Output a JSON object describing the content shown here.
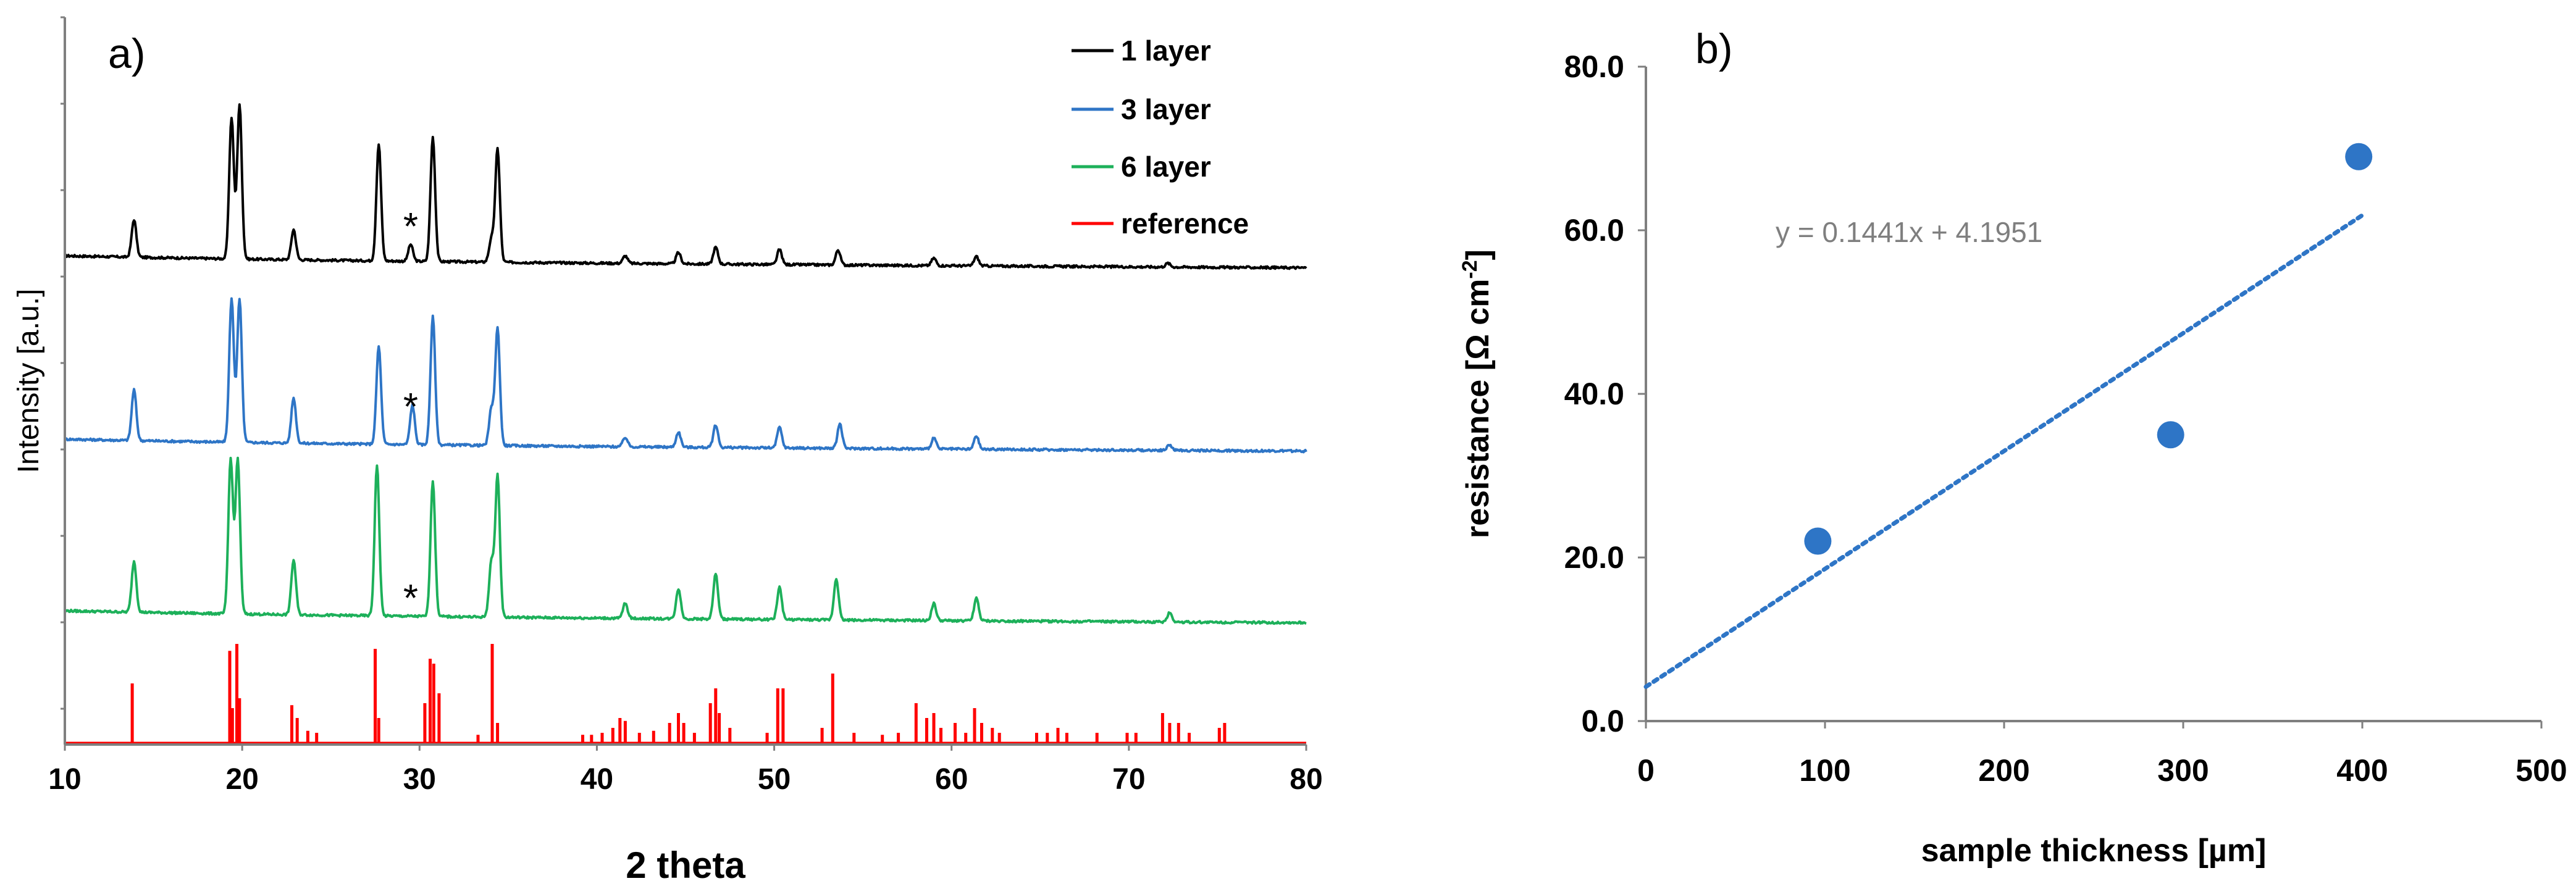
{
  "chart_data": [
    {
      "type": "line",
      "panel_label": "a)",
      "xlabel": "2 theta",
      "ylabel": "Intensity [a.u.]",
      "xlim": [
        10,
        80
      ],
      "xticks": [
        "10",
        "20",
        "30",
        "40",
        "50",
        "60",
        "70",
        "80"
      ],
      "grid": false,
      "legend_position": "top-right",
      "impurity_marker": "*",
      "impurity_marker_position_2theta": 29.5,
      "series": [
        {
          "name": "1 layer",
          "color": "#000000",
          "baseline": 0.3,
          "peaks": [
            [
              13.9,
              0.2
            ],
            [
              19.4,
              0.75
            ],
            [
              19.85,
              0.82
            ],
            [
              22.9,
              0.16
            ],
            [
              27.7,
              0.62
            ],
            [
              29.5,
              0.09
            ],
            [
              30.75,
              0.66
            ],
            [
              34.05,
              0.12
            ],
            [
              34.4,
              0.6
            ],
            [
              41.6,
              0.04
            ],
            [
              44.6,
              0.06
            ],
            [
              46.7,
              0.09
            ],
            [
              50.3,
              0.08
            ],
            [
              53.6,
              0.08
            ],
            [
              59.0,
              0.04
            ],
            [
              61.4,
              0.05
            ],
            [
              72.2,
              0.02
            ]
          ]
        },
        {
          "name": "3 layer",
          "color": "#2e75c6",
          "baseline": 0.3,
          "peaks": [
            [
              13.9,
              0.27
            ],
            [
              19.4,
              0.76
            ],
            [
              19.85,
              0.76
            ],
            [
              22.9,
              0.24
            ],
            [
              27.7,
              0.52
            ],
            [
              29.6,
              0.21
            ],
            [
              30.75,
              0.68
            ],
            [
              34.05,
              0.19
            ],
            [
              34.4,
              0.62
            ],
            [
              41.6,
              0.05
            ],
            [
              44.6,
              0.08
            ],
            [
              46.7,
              0.12
            ],
            [
              50.3,
              0.11
            ],
            [
              53.7,
              0.13
            ],
            [
              59.0,
              0.06
            ],
            [
              61.4,
              0.07
            ],
            [
              72.3,
              0.03
            ]
          ]
        },
        {
          "name": "6 layer",
          "color": "#1db05a",
          "baseline": 0.3,
          "peaks": [
            [
              13.9,
              0.27
            ],
            [
              19.35,
              0.82
            ],
            [
              19.75,
              0.82
            ],
            [
              22.9,
              0.29
            ],
            [
              27.6,
              0.8
            ],
            [
              30.75,
              0.72
            ],
            [
              34.05,
              0.29
            ],
            [
              34.4,
              0.75
            ],
            [
              41.6,
              0.08
            ],
            [
              44.6,
              0.16
            ],
            [
              46.7,
              0.24
            ],
            [
              50.3,
              0.17
            ],
            [
              53.5,
              0.22
            ],
            [
              59.0,
              0.09
            ],
            [
              61.4,
              0.12
            ],
            [
              72.3,
              0.05
            ]
          ]
        },
        {
          "name": "reference",
          "color": "#ff0000",
          "type": "stick",
          "sticks": [
            [
              13.8,
              0.6
            ],
            [
              19.3,
              0.93
            ],
            [
              19.45,
              0.35
            ],
            [
              19.7,
              1.0
            ],
            [
              19.85,
              0.45
            ],
            [
              22.8,
              0.38
            ],
            [
              23.1,
              0.25
            ],
            [
              23.7,
              0.12
            ],
            [
              24.2,
              0.1
            ],
            [
              27.5,
              0.95
            ],
            [
              27.7,
              0.25
            ],
            [
              30.3,
              0.4
            ],
            [
              30.6,
              0.85
            ],
            [
              30.8,
              0.8
            ],
            [
              31.1,
              0.5
            ],
            [
              33.3,
              0.08
            ],
            [
              34.1,
              1.0
            ],
            [
              34.4,
              0.2
            ],
            [
              39.2,
              0.08
            ],
            [
              39.7,
              0.08
            ],
            [
              40.3,
              0.1
            ],
            [
              40.9,
              0.15
            ],
            [
              41.3,
              0.25
            ],
            [
              41.6,
              0.22
            ],
            [
              42.4,
              0.1
            ],
            [
              43.2,
              0.12
            ],
            [
              44.1,
              0.2
            ],
            [
              44.6,
              0.3
            ],
            [
              44.9,
              0.2
            ],
            [
              45.5,
              0.1
            ],
            [
              46.4,
              0.4
            ],
            [
              46.7,
              0.55
            ],
            [
              46.9,
              0.3
            ],
            [
              47.5,
              0.15
            ],
            [
              49.6,
              0.1
            ],
            [
              50.2,
              0.55
            ],
            [
              50.5,
              0.55
            ],
            [
              52.7,
              0.15
            ],
            [
              53.3,
              0.7
            ],
            [
              54.5,
              0.1
            ],
            [
              56.1,
              0.08
            ],
            [
              57.0,
              0.1
            ],
            [
              58.0,
              0.4
            ],
            [
              58.6,
              0.25
            ],
            [
              59.0,
              0.3
            ],
            [
              59.4,
              0.15
            ],
            [
              60.2,
              0.2
            ],
            [
              60.8,
              0.1
            ],
            [
              61.3,
              0.35
            ],
            [
              61.7,
              0.2
            ],
            [
              62.3,
              0.15
            ],
            [
              62.7,
              0.1
            ],
            [
              64.8,
              0.1
            ],
            [
              65.4,
              0.1
            ],
            [
              66.0,
              0.15
            ],
            [
              66.5,
              0.1
            ],
            [
              68.2,
              0.1
            ],
            [
              69.9,
              0.1
            ],
            [
              70.4,
              0.1
            ],
            [
              71.9,
              0.3
            ],
            [
              72.3,
              0.2
            ],
            [
              72.8,
              0.2
            ],
            [
              73.4,
              0.1
            ],
            [
              75.1,
              0.15
            ],
            [
              75.4,
              0.2
            ]
          ]
        }
      ]
    },
    {
      "type": "scatter",
      "panel_label": "b)",
      "xlabel": "sample thickness [µm]",
      "ylabel_main": "resistance [Ω cm",
      "ylabel_sup": "-2",
      "ylabel_end": "]",
      "xlim": [
        0,
        500
      ],
      "ylim": [
        0,
        80
      ],
      "xticks": [
        "0",
        "100",
        "200",
        "300",
        "400",
        "500"
      ],
      "yticks": [
        "0.0",
        "20.0",
        "40.0",
        "60.0",
        "80.0"
      ],
      "grid": false,
      "points": [
        [
          96,
          22
        ],
        [
          293,
          35
        ],
        [
          398,
          69
        ]
      ],
      "point_color": "#2e75c6",
      "trendline": {
        "slope": 0.1441,
        "intercept": 4.1951,
        "x_range": [
          0,
          400
        ],
        "equation": "y = 0.1441x + 4.1951",
        "color": "#2e75c6",
        "equation_color": "#7f7f7f"
      }
    }
  ]
}
